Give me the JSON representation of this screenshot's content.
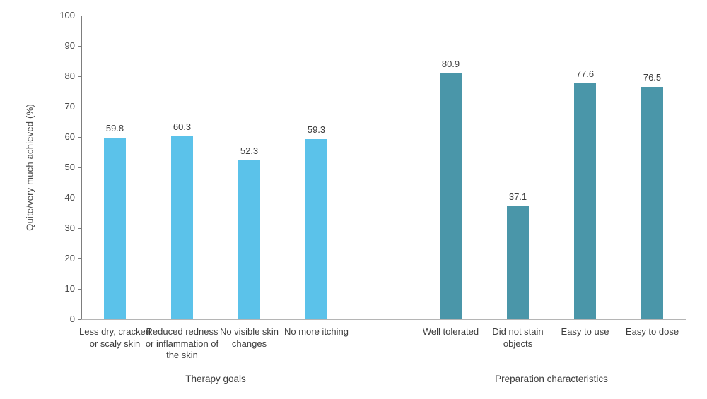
{
  "chart_data": {
    "type": "bar",
    "title": "",
    "ylabel": "Quite/very much achieved (%)",
    "xlabel": "",
    "ylim": [
      0,
      100
    ],
    "ytick_step": 10,
    "grid": false,
    "legend_position": "none",
    "groups": [
      {
        "label": "Therapy goals",
        "color": "#5BC2EA",
        "categories": [
          "Less dry, cracked or scaly skin",
          "Reduced redness or inflammation of the skin",
          "No visible skin changes",
          "No more itching"
        ],
        "values": [
          59.8,
          60.3,
          52.3,
          59.3
        ]
      },
      {
        "label": "Preparation characteristics",
        "color": "#4A96A9",
        "categories": [
          "Well tolerated",
          "Did not stain objects",
          "Easy to use",
          "Easy to dose"
        ],
        "values": [
          80.9,
          37.1,
          77.6,
          76.5
        ]
      }
    ],
    "colors": {
      "therapy_goals_bar": "#5BC2EA",
      "preparation_characteristics_bar": "#4A96A9",
      "axis": "#7d7d7d",
      "baseline": "#b5b5b5",
      "text": "#3d3d3d"
    }
  }
}
